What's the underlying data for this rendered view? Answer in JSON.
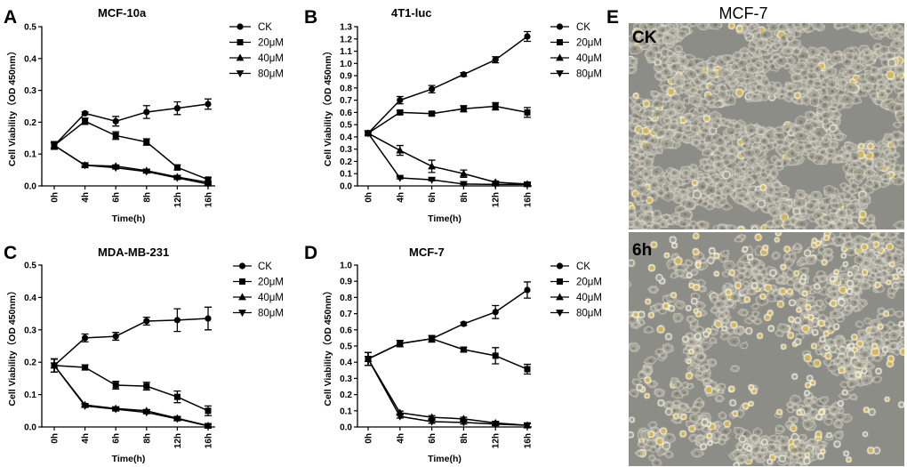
{
  "chart_data": [
    {
      "panel_label": "A",
      "type": "line",
      "title": "MCF-10a",
      "xlabel": "Time(h)",
      "ylabel": "Cell Viability（OD 450nm）",
      "categories": [
        "0h",
        "4h",
        "6h",
        "8h",
        "12h",
        "16h"
      ],
      "ylim": [
        0,
        0.5
      ],
      "yticks": [
        "0.0",
        "0.1",
        "0.2",
        "0.3",
        "0.4",
        "0.5"
      ],
      "legend": "right",
      "series": [
        {
          "name": "CK",
          "marker": "circle",
          "values": [
            0.127,
            0.228,
            0.203,
            0.232,
            0.244,
            0.257
          ],
          "errors": [
            0.012,
            0.004,
            0.015,
            0.02,
            0.02,
            0.016
          ]
        },
        {
          "name": "20μM",
          "marker": "square",
          "values": [
            0.127,
            0.203,
            0.158,
            0.138,
            0.058,
            0.02
          ],
          "errors": [
            0.012,
            0.01,
            0.012,
            0.01,
            0.008,
            0.006
          ]
        },
        {
          "name": "40μM",
          "marker": "triangle-up",
          "values": [
            0.127,
            0.065,
            0.062,
            0.048,
            0.028,
            0.011
          ],
          "errors": [
            0.012,
            0.003,
            0.004,
            0.004,
            0.004,
            0.003
          ]
        },
        {
          "name": "80μM",
          "marker": "triangle-down",
          "values": [
            0.127,
            0.065,
            0.057,
            0.045,
            0.025,
            0.006
          ],
          "errors": [
            0.012,
            0.003,
            0.004,
            0.003,
            0.003,
            0.003
          ]
        }
      ]
    },
    {
      "panel_label": "B",
      "type": "line",
      "title": "4T1-luc",
      "xlabel": "Time(h)",
      "ylabel": "Cell Viability（OD 450nm）",
      "categories": [
        "0h",
        "4h",
        "6h",
        "8h",
        "12h",
        "16h"
      ],
      "ylim": [
        0,
        1.3
      ],
      "yticks": [
        "0.0",
        "0.1",
        "0.2",
        "0.3",
        "0.4",
        "0.5",
        "0.6",
        "0.7",
        "0.8",
        "0.9",
        "1.0",
        "1.1",
        "1.2",
        "1.3"
      ],
      "legend": "right",
      "series": [
        {
          "name": "CK",
          "marker": "circle",
          "values": [
            0.43,
            0.7,
            0.79,
            0.91,
            1.03,
            1.22
          ],
          "errors": [
            0.01,
            0.03,
            0.03,
            0.015,
            0.025,
            0.04
          ]
        },
        {
          "name": "20μM",
          "marker": "square",
          "values": [
            0.43,
            0.6,
            0.59,
            0.63,
            0.65,
            0.6
          ],
          "errors": [
            0.01,
            0.015,
            0.015,
            0.025,
            0.03,
            0.04
          ]
        },
        {
          "name": "40μM",
          "marker": "triangle-up",
          "values": [
            0.43,
            0.29,
            0.16,
            0.1,
            0.03,
            0.015
          ],
          "errors": [
            0.01,
            0.04,
            0.05,
            0.03,
            0.01,
            0.008
          ]
        },
        {
          "name": "80μM",
          "marker": "triangle-down",
          "values": [
            0.43,
            0.065,
            0.05,
            0.015,
            0.012,
            0.012
          ],
          "errors": [
            0.01,
            0.008,
            0.008,
            0.005,
            0.005,
            0.005
          ]
        }
      ]
    },
    {
      "panel_label": "C",
      "type": "line",
      "title": "MDA-MB-231",
      "xlabel": "Time(h)",
      "ylabel": "Cell Viability（OD 450nm）",
      "categories": [
        "0h",
        "4h",
        "6h",
        "8h",
        "12h",
        "16h"
      ],
      "ylim": [
        0,
        0.5
      ],
      "yticks": [
        "0.0",
        "0.1",
        "0.2",
        "0.3",
        "0.4",
        "0.5"
      ],
      "legend": "right",
      "series": [
        {
          "name": "CK",
          "marker": "circle",
          "values": [
            0.19,
            0.275,
            0.28,
            0.327,
            0.33,
            0.335
          ],
          "errors": [
            0.02,
            0.012,
            0.012,
            0.012,
            0.035,
            0.035
          ]
        },
        {
          "name": "20μM",
          "marker": "square",
          "values": [
            0.19,
            0.184,
            0.129,
            0.126,
            0.093,
            0.05
          ],
          "errors": [
            0.02,
            0.008,
            0.012,
            0.012,
            0.018,
            0.015
          ]
        },
        {
          "name": "40μM",
          "marker": "triangle-up",
          "values": [
            0.19,
            0.068,
            0.057,
            0.05,
            0.027,
            0.004
          ],
          "errors": [
            0.02,
            0.004,
            0.004,
            0.004,
            0.004,
            0.003
          ]
        },
        {
          "name": "80μM",
          "marker": "triangle-down",
          "values": [
            0.19,
            0.065,
            0.055,
            0.045,
            0.025,
            0.003
          ],
          "errors": [
            0.02,
            0.004,
            0.004,
            0.004,
            0.004,
            0.003
          ]
        }
      ]
    },
    {
      "panel_label": "D",
      "type": "line",
      "title": "MCF-7",
      "xlabel": "Time(h)",
      "ylabel": "Cell Viability（OD 450nm）",
      "categories": [
        "0h",
        "4h",
        "6h",
        "8h",
        "12h",
        "16h"
      ],
      "ylim": [
        0,
        1.0
      ],
      "yticks": [
        "0.0",
        "0.1",
        "0.2",
        "0.3",
        "0.4",
        "0.5",
        "0.6",
        "0.7",
        "0.8",
        "0.9",
        "1.0"
      ],
      "legend": "right",
      "series": [
        {
          "name": "CK",
          "marker": "circle",
          "values": [
            0.42,
            0.515,
            0.545,
            0.637,
            0.71,
            0.846
          ],
          "errors": [
            0.04,
            0.02,
            0.02,
            0.01,
            0.04,
            0.05
          ]
        },
        {
          "name": "20μM",
          "marker": "square",
          "values": [
            0.42,
            0.515,
            0.545,
            0.478,
            0.44,
            0.357
          ],
          "errors": [
            0.04,
            0.02,
            0.02,
            0.015,
            0.05,
            0.03
          ]
        },
        {
          "name": "40μM",
          "marker": "triangle-up",
          "values": [
            0.42,
            0.088,
            0.06,
            0.05,
            0.025,
            0.01
          ],
          "errors": [
            0.04,
            0.01,
            0.01,
            0.01,
            0.01,
            0.01
          ]
        },
        {
          "name": "80μM",
          "marker": "triangle-down",
          "values": [
            0.42,
            0.065,
            0.033,
            0.028,
            0.018,
            0.01
          ],
          "errors": [
            0.04,
            0.01,
            0.01,
            0.01,
            0.01,
            0.01
          ]
        }
      ]
    }
  ],
  "panel_e": {
    "label": "E",
    "title": "MCF-7",
    "images": [
      {
        "label": "CK"
      },
      {
        "label": "6h"
      }
    ]
  },
  "colors": {
    "series_line": "#000000",
    "micrograph_background": "#8d8d87",
    "cell_rim": "#e8e8de",
    "rounded_cell": "#d6b654"
  }
}
